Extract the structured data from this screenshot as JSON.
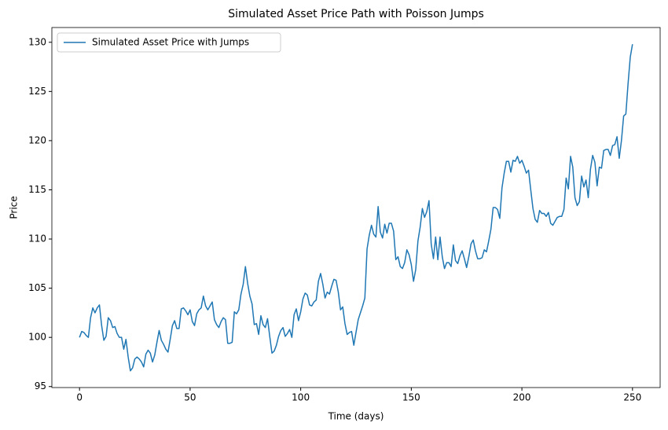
{
  "chart_data": {
    "type": "line",
    "title": "Simulated Asset Price Path with Poisson Jumps",
    "x_label": "Time (days)",
    "y_label": "Price",
    "xlim": [
      -12.5,
      262.5
    ],
    "ylim": [
      94.9,
      131.5
    ],
    "xticks": [
      0,
      50,
      100,
      150,
      200,
      250
    ],
    "yticks": [
      95,
      100,
      105,
      110,
      115,
      120,
      125,
      130
    ],
    "legend": "upper left",
    "x": [
      0,
      1,
      2,
      3,
      4,
      5,
      6,
      7,
      8,
      9,
      10,
      11,
      12,
      13,
      14,
      15,
      16,
      17,
      18,
      19,
      20,
      21,
      22,
      23,
      24,
      25,
      26,
      27,
      28,
      29,
      30,
      31,
      32,
      33,
      34,
      35,
      36,
      37,
      38,
      39,
      40,
      41,
      42,
      43,
      44,
      45,
      46,
      47,
      48,
      49,
      50,
      51,
      52,
      53,
      54,
      55,
      56,
      57,
      58,
      59,
      60,
      61,
      62,
      63,
      64,
      65,
      66,
      67,
      68,
      69,
      70,
      71,
      72,
      73,
      74,
      75,
      76,
      77,
      78,
      79,
      80,
      81,
      82,
      83,
      84,
      85,
      86,
      87,
      88,
      89,
      90,
      91,
      92,
      93,
      94,
      95,
      96,
      97,
      98,
      99,
      100,
      101,
      102,
      103,
      104,
      105,
      106,
      107,
      108,
      109,
      110,
      111,
      112,
      113,
      114,
      115,
      116,
      117,
      118,
      119,
      120,
      121,
      122,
      123,
      124,
      125,
      126,
      127,
      128,
      129,
      130,
      131,
      132,
      133,
      134,
      135,
      136,
      137,
      138,
      139,
      140,
      141,
      142,
      143,
      144,
      145,
      146,
      147,
      148,
      149,
      150,
      151,
      152,
      153,
      154,
      155,
      156,
      157,
      158,
      159,
      160,
      161,
      162,
      163,
      164,
      165,
      166,
      167,
      168,
      169,
      170,
      171,
      172,
      173,
      174,
      175,
      176,
      177,
      178,
      179,
      180,
      181,
      182,
      183,
      184,
      185,
      186,
      187,
      188,
      189,
      190,
      191,
      192,
      193,
      194,
      195,
      196,
      197,
      198,
      199,
      200,
      201,
      202,
      203,
      204,
      205,
      206,
      207,
      208,
      209,
      210,
      211,
      212,
      213,
      214,
      215,
      216,
      217,
      218,
      219,
      220,
      221,
      222,
      223,
      224,
      225,
      226,
      227,
      228,
      229,
      230,
      231,
      232,
      233,
      234,
      235,
      236,
      237,
      238,
      239,
      240,
      241,
      242,
      243,
      244,
      245,
      246,
      247,
      248,
      249,
      250
    ],
    "series": [
      {
        "name": "Simulated Asset Price with Jumps",
        "color": "#1f77b4",
        "values": [
          100.0,
          100.6,
          100.5,
          100.2,
          100.0,
          102.0,
          103.0,
          102.5,
          103.0,
          103.3,
          101.2,
          99.7,
          100.1,
          102.0,
          101.7,
          101.0,
          101.1,
          100.4,
          100.0,
          100.0,
          98.8,
          99.8,
          98.0,
          96.6,
          96.9,
          97.8,
          98.0,
          97.8,
          97.5,
          97.0,
          98.3,
          98.7,
          98.4,
          97.5,
          98.2,
          99.5,
          100.7,
          99.7,
          99.3,
          98.8,
          98.5,
          99.8,
          101.2,
          101.7,
          100.9,
          100.9,
          102.9,
          103.0,
          102.7,
          102.3,
          102.8,
          101.6,
          101.2,
          102.4,
          102.8,
          103.0,
          104.2,
          103.2,
          102.8,
          103.2,
          103.6,
          101.8,
          101.3,
          101.0,
          101.6,
          102.0,
          101.8,
          99.4,
          99.4,
          99.5,
          102.6,
          102.4,
          102.8,
          104.4,
          105.4,
          107.2,
          105.5,
          104.2,
          103.4,
          101.3,
          101.4,
          100.3,
          102.2,
          101.3,
          101.0,
          101.9,
          100.1,
          98.4,
          98.6,
          99.2,
          100.1,
          100.7,
          101.0,
          100.1,
          100.4,
          100.8,
          100.0,
          102.3,
          102.9,
          101.7,
          102.6,
          103.9,
          104.5,
          104.3,
          103.3,
          103.2,
          103.6,
          103.8,
          105.7,
          106.5,
          105.4,
          104.0,
          104.6,
          104.4,
          105.2,
          105.9,
          105.8,
          104.6,
          102.8,
          103.1,
          101.4,
          100.3,
          100.5,
          100.6,
          99.2,
          100.5,
          101.8,
          102.5,
          103.2,
          104.0,
          109.0,
          110.4,
          111.4,
          110.5,
          110.2,
          113.3,
          110.7,
          110.1,
          111.5,
          110.6,
          111.6,
          111.6,
          110.8,
          107.9,
          108.2,
          107.2,
          107.0,
          107.6,
          108.9,
          108.4,
          107.4,
          105.7,
          106.9,
          109.8,
          111.2,
          113.1,
          112.2,
          112.8,
          113.9,
          109.5,
          108.0,
          110.2,
          107.9,
          110.2,
          108.2,
          107.0,
          107.6,
          107.6,
          107.2,
          109.4,
          107.8,
          107.5,
          108.3,
          108.8,
          108.0,
          107.1,
          108.2,
          109.5,
          109.9,
          108.8,
          108.0,
          108.0,
          108.1,
          108.9,
          108.7,
          109.8,
          111.0,
          113.2,
          113.2,
          113.0,
          112.1,
          115.2,
          116.7,
          117.9,
          117.9,
          116.8,
          118.0,
          117.9,
          118.4,
          117.7,
          118.0,
          117.4,
          116.7,
          117.0,
          115.0,
          113.1,
          112.0,
          111.7,
          112.9,
          112.6,
          112.6,
          112.3,
          112.7,
          111.6,
          111.4,
          111.8,
          112.2,
          112.3,
          112.3,
          113.0,
          116.2,
          115.1,
          118.4,
          117.3,
          114.2,
          113.4,
          113.8,
          116.4,
          115.3,
          116.0,
          114.2,
          117.1,
          118.5,
          117.8,
          115.4,
          117.3,
          117.2,
          119.0,
          119.1,
          119.1,
          118.5,
          119.5,
          119.6,
          120.4,
          118.2,
          120.0,
          122.5,
          122.7,
          125.8,
          128.5,
          129.8
        ]
      }
    ]
  }
}
